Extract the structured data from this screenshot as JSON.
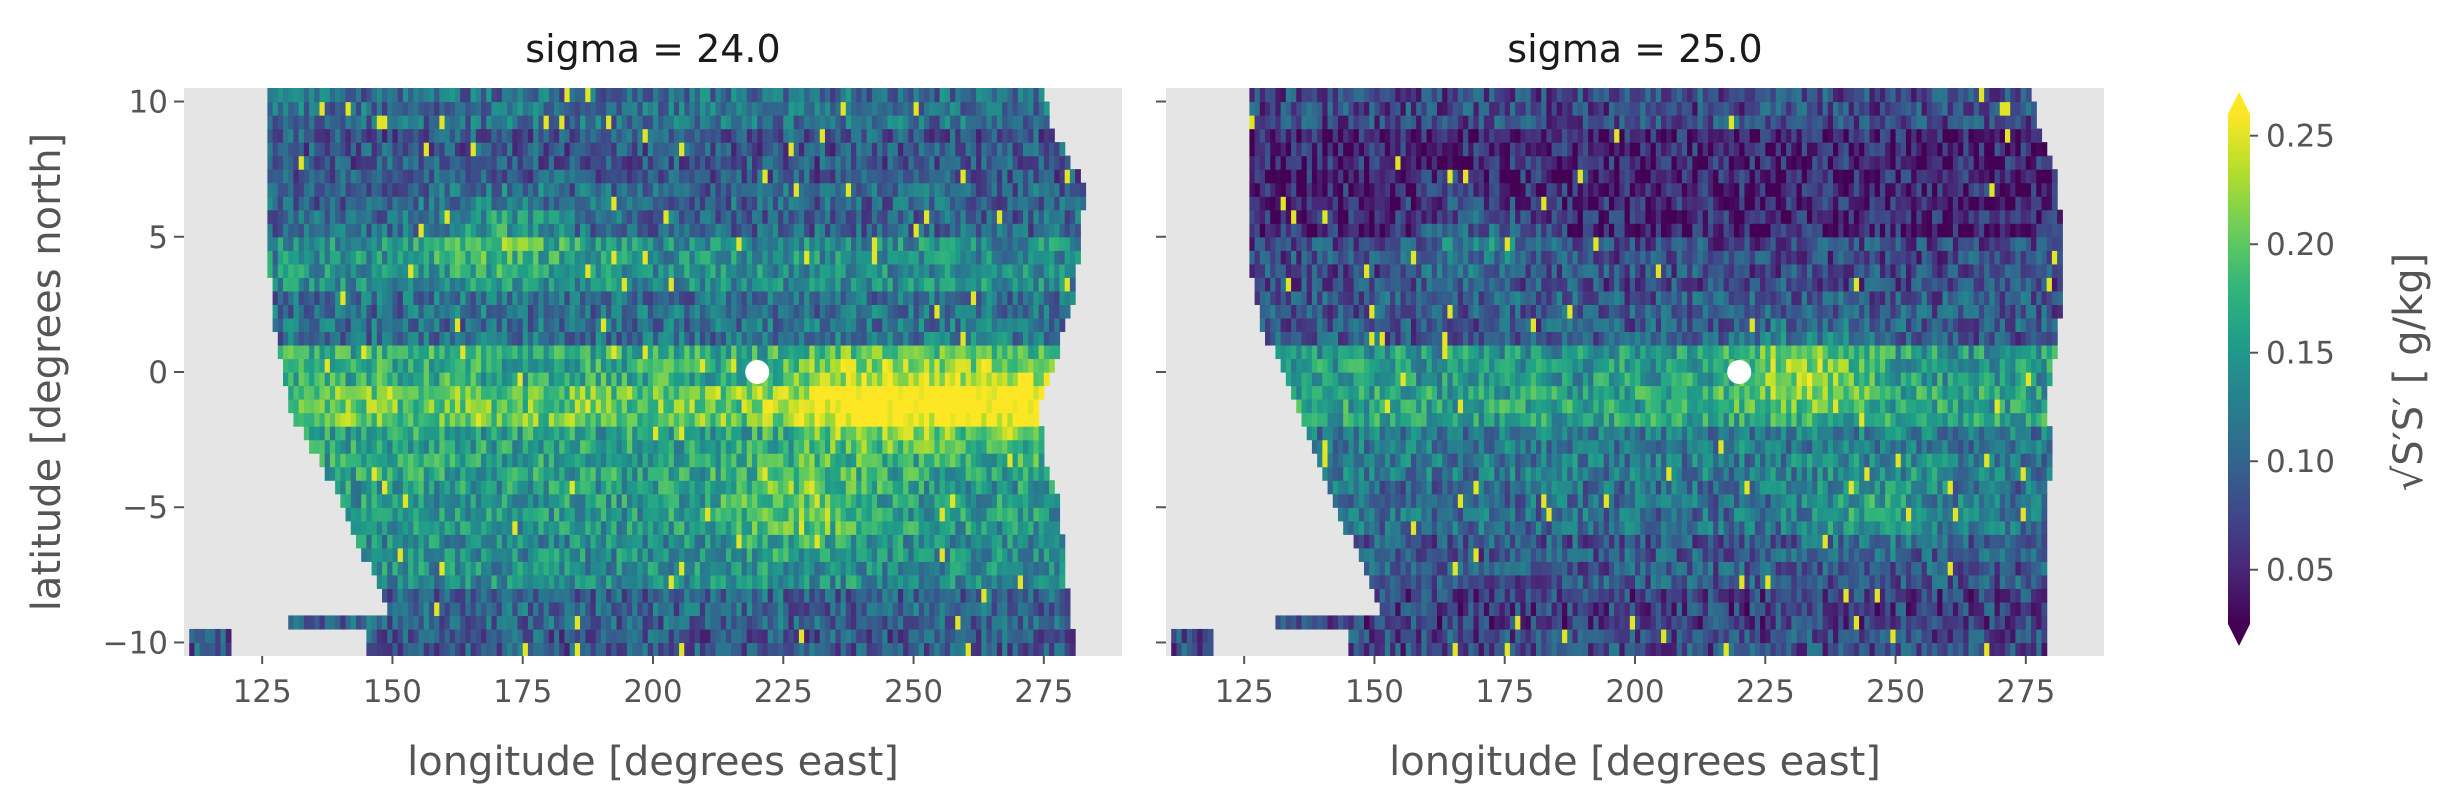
{
  "chart_data": {
    "type": "heatmap",
    "xlabel": "longitude [degrees east]",
    "ylabel": "latitude [degrees north]",
    "xlim": [
      110,
      290
    ],
    "ylim": [
      -10.5,
      10.5
    ],
    "xticks": [
      125,
      150,
      175,
      200,
      225,
      250,
      275
    ],
    "yticks": [
      10,
      5,
      0,
      -5,
      -10
    ],
    "xtick_labels": [
      "125",
      "150",
      "175",
      "200",
      "225",
      "250",
      "275"
    ],
    "ytick_labels": [
      "10",
      "5",
      "0",
      "−5",
      "−10"
    ],
    "colorbar": {
      "label": "√S′S′  [ g/kg]",
      "range": [
        0.025,
        0.26
      ],
      "ticks": [
        0.05,
        0.1,
        0.15,
        0.2,
        0.25
      ],
      "tick_labels": [
        "0.05",
        "0.10",
        "0.15",
        "0.20",
        "0.25"
      ],
      "extend": "both",
      "colormap": [
        "#440154",
        "#482878",
        "#3e4a89",
        "#31688e",
        "#26828e",
        "#1f9e89",
        "#35b779",
        "#6ece58",
        "#b5de2b",
        "#fde725"
      ]
    },
    "nan_color": "#e5e5e5",
    "marker": {
      "lon": 220,
      "lat": 0,
      "color": "#ffffff"
    },
    "panels": [
      {
        "title": "sigma = 24.0",
        "west_edge": [
          [
            -10.5,
            111
          ],
          [
            -9.5,
            111
          ],
          [
            -9.0,
            150
          ],
          [
            -8.0,
            148
          ],
          [
            -7.0,
            145
          ],
          [
            -6.0,
            143
          ],
          [
            -5.0,
            141
          ],
          [
            -4.0,
            138
          ],
          [
            -3.0,
            135
          ],
          [
            -2.0,
            132
          ],
          [
            -1.0,
            130
          ],
          [
            0.0,
            129
          ],
          [
            1.0,
            128
          ],
          [
            2.0,
            127
          ],
          [
            3.0,
            127
          ],
          [
            4.0,
            126
          ],
          [
            5.0,
            126
          ],
          [
            6.0,
            126
          ],
          [
            7.0,
            126
          ],
          [
            8.0,
            126
          ],
          [
            9.0,
            126
          ],
          [
            10.5,
            126
          ]
        ],
        "east_edge": [
          [
            -10.5,
            281
          ],
          [
            -9.0,
            280
          ],
          [
            -7.0,
            279
          ],
          [
            -5.0,
            278
          ],
          [
            -3.0,
            275
          ],
          [
            -1.0,
            274
          ],
          [
            0.0,
            276
          ],
          [
            1.0,
            278
          ],
          [
            3.0,
            281
          ],
          [
            5.0,
            282
          ],
          [
            7.0,
            283
          ],
          [
            9.0,
            276
          ],
          [
            10.5,
            275
          ]
        ],
        "rows": [
          {
            "lat": 10,
            "mean": 0.11
          },
          {
            "lat": 8,
            "mean": 0.09
          },
          {
            "lat": 6,
            "mean": 0.1
          },
          {
            "lat": 4,
            "mean": 0.14
          },
          {
            "lat": 2,
            "mean": 0.11
          },
          {
            "lat": 0,
            "mean": 0.17
          },
          {
            "lat": -1,
            "mean": 0.2
          },
          {
            "lat": -3,
            "mean": 0.16
          },
          {
            "lat": -5,
            "mean": 0.15
          },
          {
            "lat": -7,
            "mean": 0.14
          },
          {
            "lat": -9,
            "mean": 0.1
          },
          {
            "lat": -10,
            "mean": 0.09
          }
        ],
        "hotspots": [
          {
            "lon": 242,
            "lat": -1,
            "strength": 0.1
          },
          {
            "lon": 268,
            "lat": -1,
            "strength": 0.09
          },
          {
            "lon": 228,
            "lat": -5,
            "strength": 0.06
          },
          {
            "lon": 170,
            "lat": 5,
            "strength": 0.06
          }
        ],
        "seed": 7
      },
      {
        "title": "sigma = 25.0",
        "west_edge": [
          [
            -10.5,
            111
          ],
          [
            -9.5,
            111
          ],
          [
            -9.0,
            152
          ],
          [
            -8.0,
            150
          ],
          [
            -7.0,
            148
          ],
          [
            -6.0,
            145
          ],
          [
            -5.0,
            143
          ],
          [
            -4.0,
            141
          ],
          [
            -3.0,
            139
          ],
          [
            -2.0,
            137
          ],
          [
            -1.0,
            135
          ],
          [
            0.0,
            133
          ],
          [
            1.0,
            130
          ],
          [
            2.0,
            128
          ],
          [
            3.0,
            127
          ],
          [
            4.0,
            126
          ],
          [
            5.0,
            126
          ],
          [
            6.0,
            126
          ],
          [
            7.0,
            126
          ],
          [
            8.0,
            126
          ],
          [
            9.0,
            126
          ],
          [
            10.5,
            126
          ]
        ],
        "east_edge": [
          [
            -10.5,
            279
          ],
          [
            -7.0,
            279
          ],
          [
            -5.0,
            279
          ],
          [
            -3.0,
            280
          ],
          [
            -1.0,
            279
          ],
          [
            0.0,
            280
          ],
          [
            1.0,
            281
          ],
          [
            3.0,
            282
          ],
          [
            5.0,
            282
          ],
          [
            7.0,
            281
          ],
          [
            9.0,
            277
          ],
          [
            10.5,
            276
          ]
        ],
        "rows": [
          {
            "lat": 10,
            "mean": 0.08
          },
          {
            "lat": 8,
            "mean": 0.05
          },
          {
            "lat": 6,
            "mean": 0.05
          },
          {
            "lat": 4,
            "mean": 0.08
          },
          {
            "lat": 2,
            "mean": 0.09
          },
          {
            "lat": 0,
            "mean": 0.15
          },
          {
            "lat": -1,
            "mean": 0.16
          },
          {
            "lat": -3,
            "mean": 0.12
          },
          {
            "lat": -5,
            "mean": 0.11
          },
          {
            "lat": -7,
            "mean": 0.09
          },
          {
            "lat": -9,
            "mean": 0.07
          },
          {
            "lat": -10,
            "mean": 0.08
          }
        ],
        "hotspots": [
          {
            "lon": 232,
            "lat": 0,
            "strength": 0.07
          },
          {
            "lon": 246,
            "lat": -5,
            "strength": 0.05
          },
          {
            "lon": 170,
            "lat": 5,
            "strength": 0.05
          }
        ],
        "seed": 19
      }
    ]
  }
}
